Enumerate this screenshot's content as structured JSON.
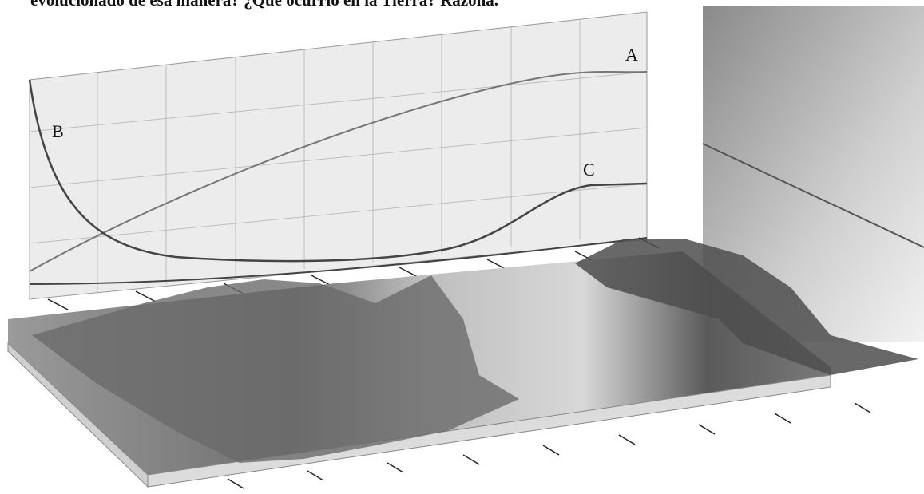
{
  "header": {
    "text": "evolucionado de esa manera? ¿Qué ocurrió en la Tierra? Razona."
  },
  "curves": [
    {
      "label": "A"
    },
    {
      "label": "B"
    },
    {
      "label": "C"
    }
  ]
}
